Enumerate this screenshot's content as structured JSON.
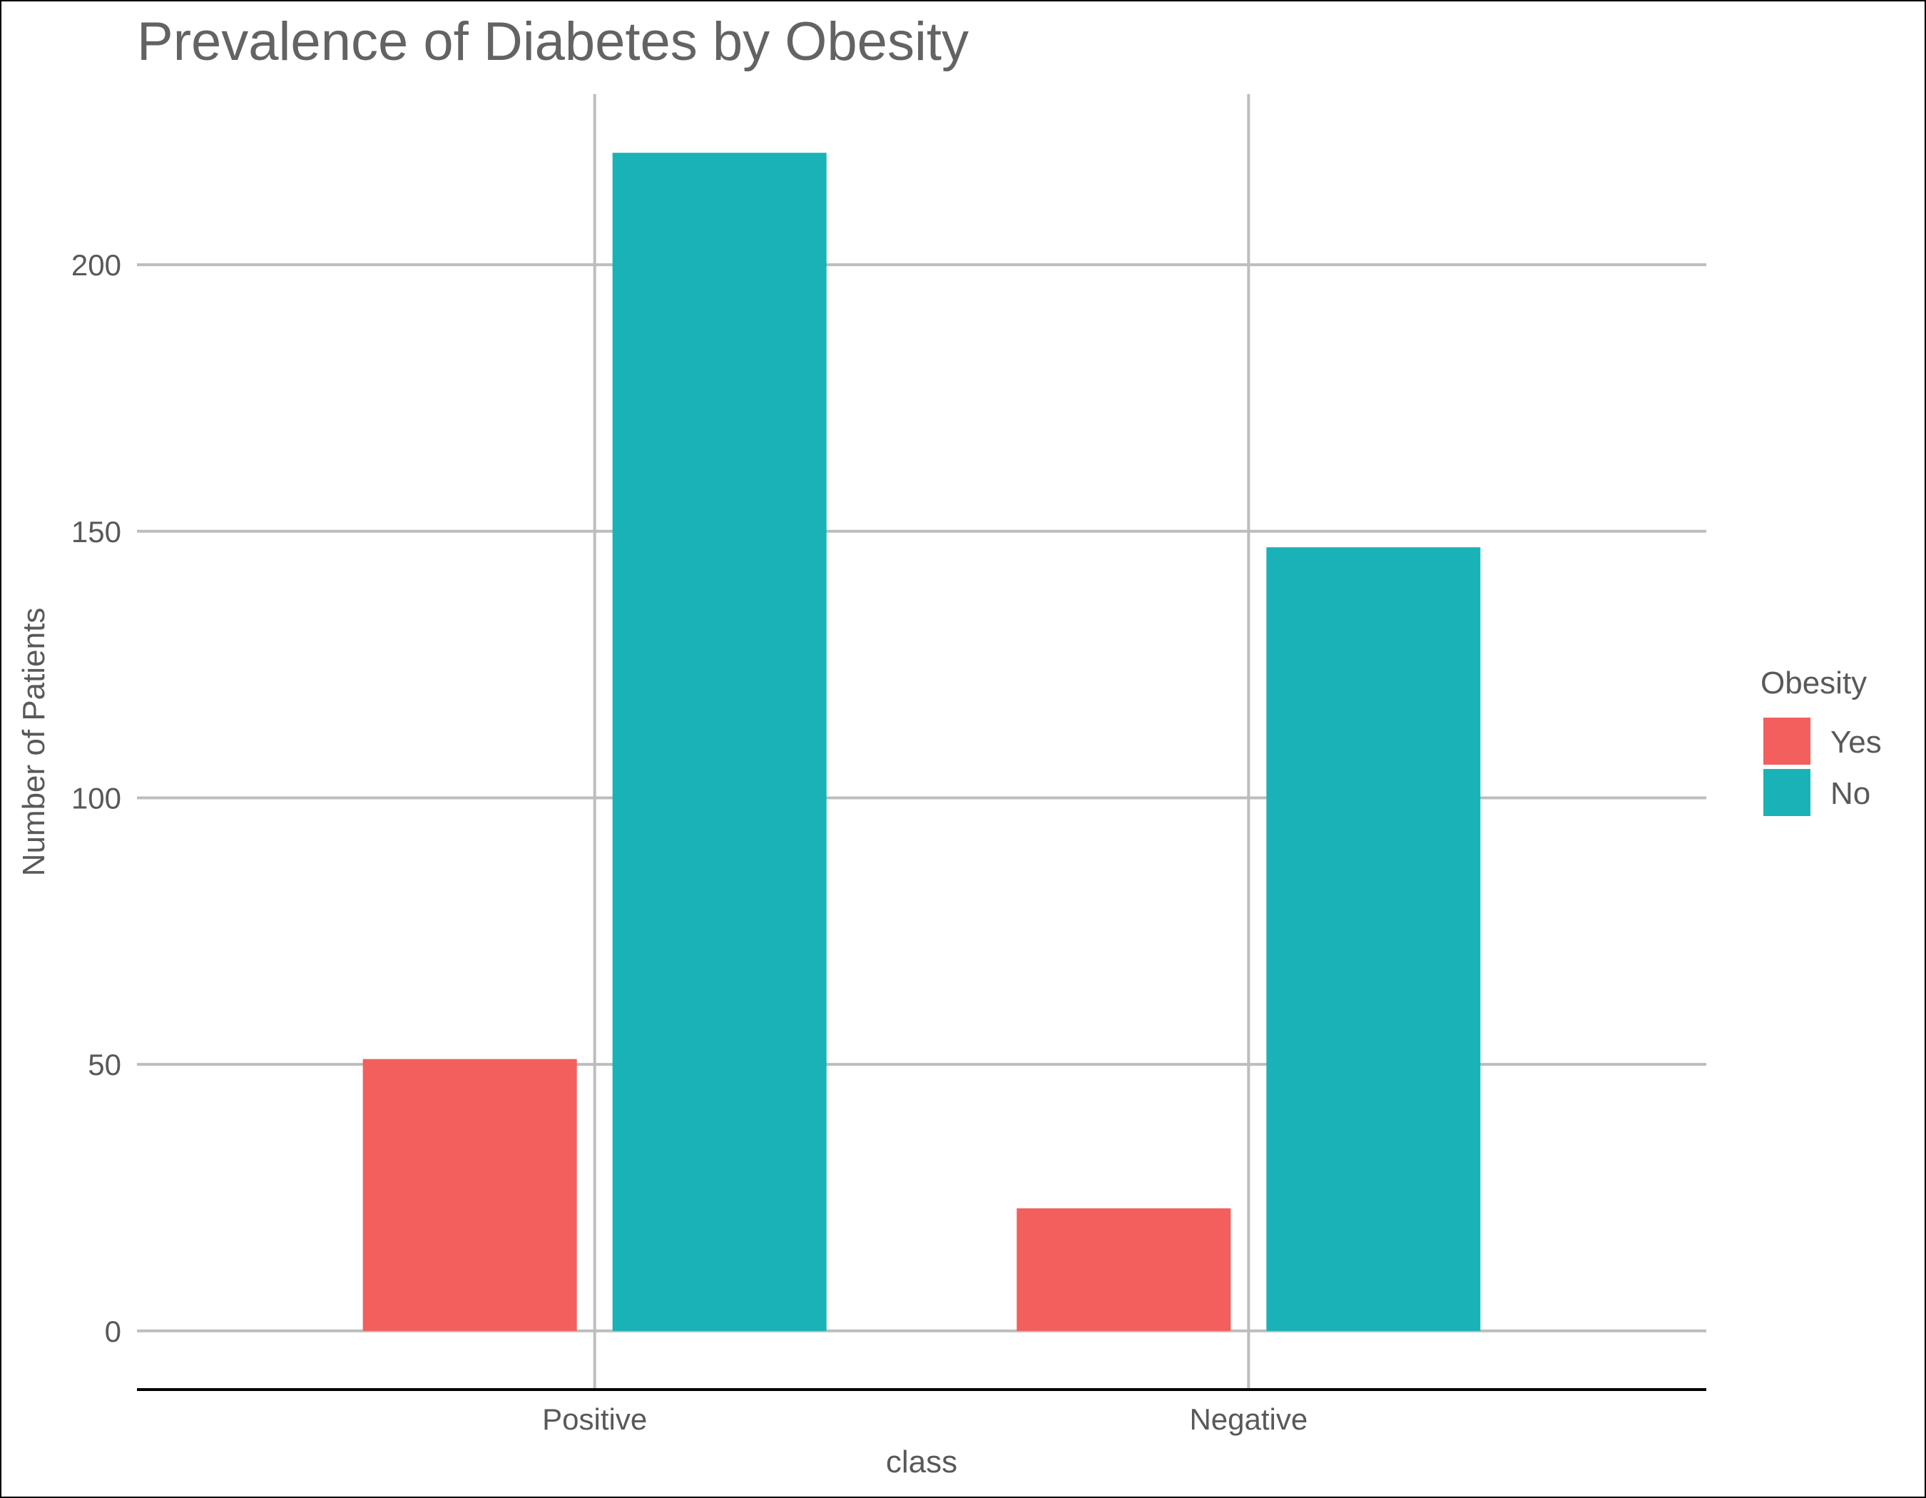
{
  "chart_data": {
    "type": "bar",
    "title": "Prevalence of Diabetes by Obesity",
    "xlabel": "class",
    "ylabel": "Number of Patients",
    "categories": [
      "Positive",
      "Negative"
    ],
    "series": [
      {
        "name": "Yes",
        "values": [
          51,
          23
        ],
        "color": "#F25F5C"
      },
      {
        "name": "No",
        "values": [
          221,
          147
        ],
        "color": "#19B2B7"
      }
    ],
    "yticks": [
      0,
      50,
      100,
      150,
      200
    ],
    "ylim": [
      -11,
      232
    ],
    "grid": true,
    "legend_title": "Obesity",
    "legend_position": "right"
  }
}
